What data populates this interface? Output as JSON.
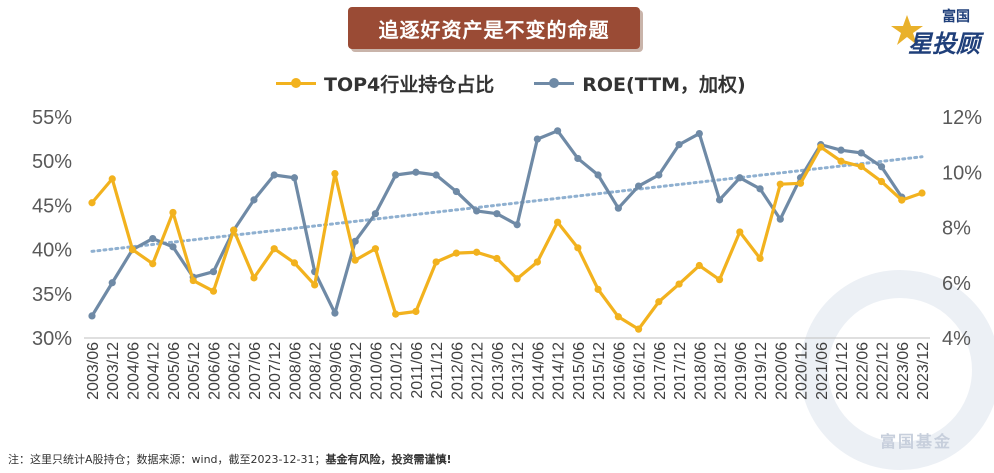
{
  "page": {
    "title": "追逐好资产是不变的命题",
    "logo_top": "富国",
    "logo_main": "星投顾",
    "footnote": "注：这里只统计A股持仓；数据来源：wind，截至2023-12-31；",
    "footnote_bold": "基金有风险，投资需谨慎!",
    "watermark": "富国基金"
  },
  "colors": {
    "series1": "#f2b21e",
    "series2": "#6f8aa6",
    "trend": "#8fb0d0",
    "title_bg": "#9a4b35"
  },
  "chart_data": {
    "type": "line",
    "categories": [
      "2003/06",
      "2003/12",
      "2004/06",
      "2004/12",
      "2005/06",
      "2005/12",
      "2006/06",
      "2006/12",
      "2007/06",
      "2007/12",
      "2008/06",
      "2008/12",
      "2009/06",
      "2009/12",
      "2010/06",
      "2010/12",
      "2011/06",
      "2011/12",
      "2012/06",
      "2012/12",
      "2013/06",
      "2013/12",
      "2014/06",
      "2014/12",
      "2015/06",
      "2015/12",
      "2016/06",
      "2016/12",
      "2017/06",
      "2017/12",
      "2018/06",
      "2018/12",
      "2019/06",
      "2019/12",
      "2020/06",
      "2020/12",
      "2021/06",
      "2021/12",
      "2022/06",
      "2022/12",
      "2023/06",
      "2023/12"
    ],
    "series": [
      {
        "name": "TOP4行业持仓占比",
        "axis": "left",
        "values": [
          45.3,
          48.0,
          40.0,
          38.4,
          44.2,
          36.5,
          35.3,
          42.2,
          36.8,
          40.1,
          38.5,
          36.0,
          48.6,
          38.8,
          40.1,
          32.7,
          33.0,
          38.6,
          39.6,
          39.7,
          39.0,
          36.7,
          38.6,
          43.1,
          40.2,
          35.5,
          32.4,
          31.0,
          34.1,
          36.1,
          38.2,
          36.6,
          42.0,
          39.0,
          47.4,
          47.5,
          51.6,
          50.0,
          49.4,
          47.7,
          45.6,
          46.4
        ]
      },
      {
        "name": "ROE(TTM，加权)",
        "axis": "right",
        "values": [
          4.8,
          6.0,
          7.2,
          7.6,
          7.3,
          6.2,
          6.4,
          7.9,
          9.0,
          9.9,
          9.8,
          6.4,
          4.9,
          7.5,
          8.5,
          9.9,
          10.0,
          9.9,
          9.3,
          8.6,
          8.5,
          8.1,
          11.2,
          11.5,
          10.5,
          9.9,
          8.7,
          9.5,
          9.9,
          11.0,
          11.4,
          9.0,
          9.8,
          9.4,
          8.3,
          9.8,
          11.0,
          10.8,
          10.7,
          10.2,
          9.1,
          null
        ]
      }
    ],
    "trendline": {
      "series": "TOP4行业持仓占比",
      "style": "dotted",
      "start": 39.8,
      "end": 50.5
    },
    "y_left": {
      "ticks": [
        "30%",
        "35%",
        "40%",
        "45%",
        "50%",
        "55%"
      ],
      "min": 30,
      "max": 55
    },
    "y_right": {
      "ticks": [
        "4%",
        "6%",
        "8%",
        "10%",
        "12%"
      ],
      "min": 4,
      "max": 12
    },
    "legend_position": "top-center",
    "grid": false
  }
}
